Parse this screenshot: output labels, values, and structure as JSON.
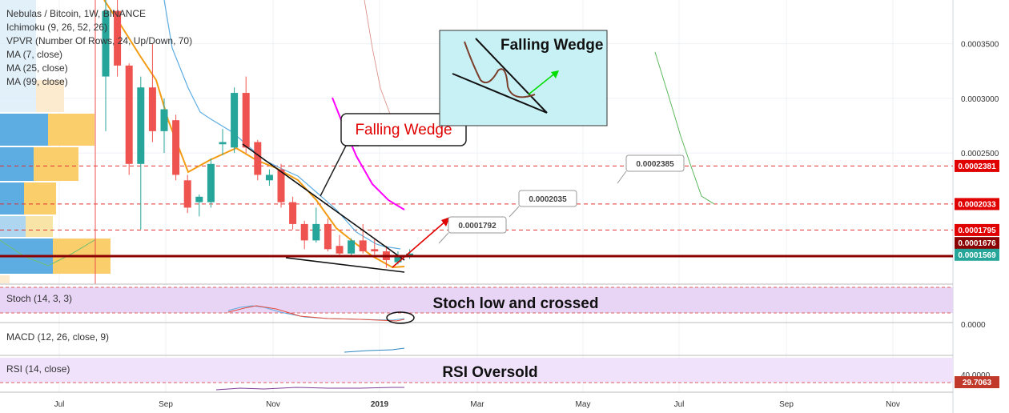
{
  "legend": {
    "symbol": "Nebulas / Bitcoin, 1W, BINANCE",
    "indicators": [
      "Ichimoku (9, 26, 52, 26)",
      "VPVR (Number Of Rows, 24, Up/Down, 70)",
      "MA (7, close)",
      "MA (25, close)",
      "MA (99, close)"
    ]
  },
  "panes": {
    "stoch": {
      "title": "Stoch (14, 3, 3)",
      "annotation": "Stoch low and crossed"
    },
    "macd": {
      "title": "MACD (12, 26, close, 9)",
      "axis_label": "0.0000"
    },
    "rsi": {
      "title": "RSI (14, close)",
      "annotation": "RSI Oversold",
      "axis_label": "40.0000",
      "value_badge": "29.7063"
    }
  },
  "annotations": {
    "falling_wedge_main": "Falling Wedge",
    "falling_wedge_box": "Falling Wedge",
    "targets": [
      "0.0001792",
      "0.0002035",
      "0.0002385"
    ]
  },
  "colors": {
    "up": "#26a69a",
    "down": "#ef5350",
    "ma7": "#f39c12",
    "ma25": "#5dade2",
    "ma99": "#ff00ff",
    "support": "#8b0000",
    "stoch_bg": "#e8d4f5",
    "rsi_bg": "#f0e2fb"
  },
  "chart_data": {
    "type": "candlestick",
    "title": "Nebulas / Bitcoin, 1W, BINANCE",
    "x_ticks": [
      "Jul",
      "Sep",
      "Nov",
      "2019",
      "Mar",
      "May",
      "Jul",
      "Sep",
      "Nov"
    ],
    "y_ticks": [
      "0.0003500",
      "0.0003000",
      "0.0002500"
    ],
    "ylim": [
      0.00013,
      0.00039
    ],
    "price_labels": [
      "0.0002381",
      "0.0002033",
      "0.0001795",
      "0.0001676",
      "0.0001569"
    ],
    "horizontal_levels": [
      0.0002381,
      0.0002033,
      0.0001795,
      0.0001676
    ],
    "last_price": 0.0001569,
    "candles": [
      {
        "o": 0.00032,
        "h": 0.00039,
        "l": 0.00027,
        "c": 0.00038
      },
      {
        "o": 0.00038,
        "h": 0.00042,
        "l": 0.00032,
        "c": 0.00033
      },
      {
        "o": 0.00033,
        "h": 0.000332,
        "l": 0.00023,
        "c": 0.00024
      },
      {
        "o": 0.00024,
        "h": 0.00032,
        "l": 0.00018,
        "c": 0.00031
      },
      {
        "o": 0.00031,
        "h": 0.00035,
        "l": 0.00026,
        "c": 0.00027
      },
      {
        "o": 0.00027,
        "h": 0.0003,
        "l": 0.00025,
        "c": 0.00029
      },
      {
        "o": 0.00028,
        "h": 0.000285,
        "l": 0.000225,
        "c": 0.00023
      },
      {
        "o": 0.000225,
        "h": 0.00023,
        "l": 0.000195,
        "c": 0.0002
      },
      {
        "o": 0.000205,
        "h": 0.000212,
        "l": 0.000192,
        "c": 0.00021
      },
      {
        "o": 0.000205,
        "h": 0.000245,
        "l": 0.0002,
        "c": 0.00024
      },
      {
        "o": 0.000258,
        "h": 0.000272,
        "l": 0.000248,
        "c": 0.00026
      },
      {
        "o": 0.000255,
        "h": 0.00031,
        "l": 0.00025,
        "c": 0.000305
      },
      {
        "o": 0.000305,
        "h": 0.00032,
        "l": 0.00025,
        "c": 0.000255
      },
      {
        "o": 0.00026,
        "h": 0.000262,
        "l": 0.000225,
        "c": 0.00023
      },
      {
        "o": 0.000225,
        "h": 0.000235,
        "l": 0.00022,
        "c": 0.00023
      },
      {
        "o": 0.000235,
        "h": 0.00024,
        "l": 0.0002,
        "c": 0.000205
      },
      {
        "o": 0.000205,
        "h": 0.00021,
        "l": 0.00018,
        "c": 0.000185
      },
      {
        "o": 0.000185,
        "h": 0.000188,
        "l": 0.000162,
        "c": 0.00017
      },
      {
        "o": 0.00017,
        "h": 0.0002,
        "l": 0.000168,
        "c": 0.000185
      },
      {
        "o": 0.000185,
        "h": 0.00019,
        "l": 0.00016,
        "c": 0.000162
      },
      {
        "o": 0.000165,
        "h": 0.000175,
        "l": 0.000155,
        "c": 0.000158
      },
      {
        "o": 0.000158,
        "h": 0.000172,
        "l": 0.000155,
        "c": 0.00017
      },
      {
        "o": 0.00017,
        "h": 0.000185,
        "l": 0.000158,
        "c": 0.00016
      },
      {
        "o": 0.000162,
        "h": 0.000172,
        "l": 0.000157,
        "c": 0.00016
      },
      {
        "o": 0.00016,
        "h": 0.000165,
        "l": 0.000145,
        "c": 0.000152
      },
      {
        "o": 0.00015,
        "h": 0.00016,
        "l": 0.000148,
        "c": 0.000156
      },
      {
        "o": 0.000155,
        "h": 0.000162,
        "l": 0.000153,
        "c": 0.000158
      }
    ]
  }
}
